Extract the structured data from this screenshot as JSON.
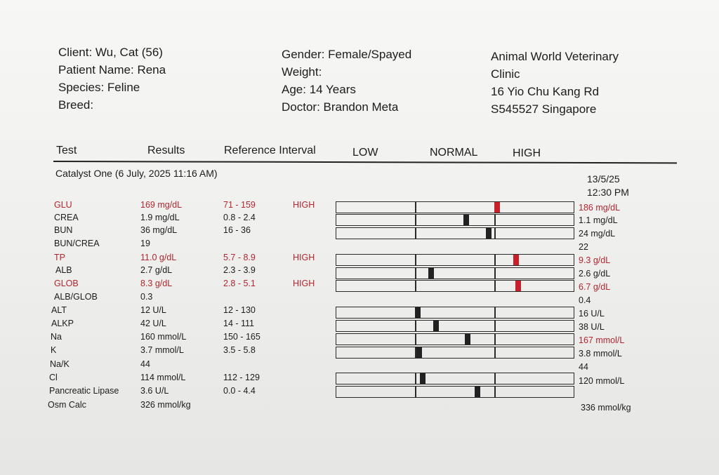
{
  "header": {
    "client": "Client: Wu, Cat (56)",
    "patient": "Patient Name: Rena",
    "species": "Species: Feline",
    "breed": "Breed:",
    "gender": "Gender: Female/Spayed",
    "weight": "Weight:",
    "age": "Age: 14 Years",
    "doctor": "Doctor: Brandon Meta",
    "clinic_line1": "Animal World Veterinary",
    "clinic_line2": "Clinic",
    "address_line1": "16 Yio Chu Kang Rd",
    "address_line2": "S545527 Singapore"
  },
  "columns": {
    "test": "Test",
    "results": "Results",
    "reference": "Reference Interval",
    "low": "LOW",
    "normal": "NORMAL",
    "high": "HIGH"
  },
  "session": "Catalyst One (6 July, 2025 11:16 AM)",
  "previous": {
    "date": "13/5/25",
    "time": "12:30 PM"
  },
  "rows": [
    {
      "name": "GLU",
      "result": "169 mg/dL",
      "range": "71 - 159",
      "flag": "HIGH",
      "prev": "186 mg/dL",
      "prev_red": true,
      "bar_position": 0.68,
      "bar_flag": "high",
      "red": true
    },
    {
      "name": "CREA",
      "result": "1.9 mg/dL",
      "range": "0.8 - 2.4",
      "flag": "",
      "prev": "1.1 mg/dL",
      "prev_red": false,
      "bar_position": 0.55,
      "bar_flag": "normal",
      "red": false
    },
    {
      "name": "BUN",
      "result": "36 mg/dL",
      "range": "16 - 36",
      "flag": "",
      "prev": "24 mg/dL",
      "prev_red": false,
      "bar_position": 0.645,
      "bar_flag": "normal",
      "red": false
    },
    {
      "name": "BUN/CREA",
      "result": "19",
      "range": "",
      "flag": "",
      "prev": "22",
      "prev_red": false,
      "bar_position": null,
      "bar_flag": "",
      "red": false
    },
    {
      "name": "TP",
      "result": "11.0 g/dL",
      "range": "5.7 - 8.9",
      "flag": "HIGH",
      "prev": "9.3 g/dL",
      "prev_red": true,
      "bar_position": 0.76,
      "bar_flag": "high",
      "red": true
    },
    {
      "name": "ALB",
      "result": "2.7 g/dL",
      "range": "2.3 - 3.9",
      "flag": "",
      "prev": "2.6 g/dL",
      "prev_red": false,
      "bar_position": 0.4,
      "bar_flag": "normal",
      "red": false
    },
    {
      "name": "GLOB",
      "result": "8.3 g/dL",
      "range": "2.8 - 5.1",
      "flag": "HIGH",
      "prev": "6.7 g/dL",
      "prev_red": true,
      "bar_position": 0.77,
      "bar_flag": "high",
      "red": true
    },
    {
      "name": "ALB/GLOB",
      "result": "0.3",
      "range": "",
      "flag": "",
      "prev": "0.4",
      "prev_red": false,
      "bar_position": null,
      "bar_flag": "",
      "red": false
    },
    {
      "name": "ALT",
      "result": "12 U/L",
      "range": "12 - 130",
      "flag": "",
      "prev": "16 U/L",
      "prev_red": false,
      "bar_position": 0.345,
      "bar_flag": "normal",
      "red": false
    },
    {
      "name": "ALKP",
      "result": "42 U/L",
      "range": "14 - 111",
      "flag": "",
      "prev": "38 U/L",
      "prev_red": false,
      "bar_position": 0.42,
      "bar_flag": "normal",
      "red": false
    },
    {
      "name": "Na",
      "result": "160 mmol/L",
      "range": "150 - 165",
      "flag": "",
      "prev": "167 mmol/L",
      "prev_red": true,
      "bar_position": 0.555,
      "bar_flag": "normal",
      "red": false
    },
    {
      "name": "K",
      "result": "3.7 mmol/L",
      "range": "3.5 - 5.8",
      "flag": "",
      "prev": "3.8 mmol/L",
      "prev_red": false,
      "bar_position": 0.35,
      "bar_flag": "normal",
      "red": false
    },
    {
      "name": "Na/K",
      "result": "44",
      "range": "",
      "flag": "",
      "prev": "44",
      "prev_red": false,
      "bar_position": null,
      "bar_flag": "",
      "red": false
    },
    {
      "name": "Cl",
      "result": "114 mmol/L",
      "range": "112 - 129",
      "flag": "",
      "prev": "120 mmol/L",
      "prev_red": false,
      "bar_position": 0.365,
      "bar_flag": "normal",
      "red": false
    },
    {
      "name": "Pancreatic Lipase",
      "result": "3.6 U/L",
      "range": "0.0 - 4.4",
      "flag": "",
      "prev": "",
      "prev_red": false,
      "bar_position": 0.595,
      "bar_flag": "normal",
      "red": false
    },
    {
      "name": "Osm Calc",
      "result": "326 mmol/kg",
      "range": "",
      "flag": "",
      "prev": "336 mmol/kg",
      "prev_red": false,
      "bar_position": null,
      "bar_flag": "",
      "red": false
    }
  ]
}
